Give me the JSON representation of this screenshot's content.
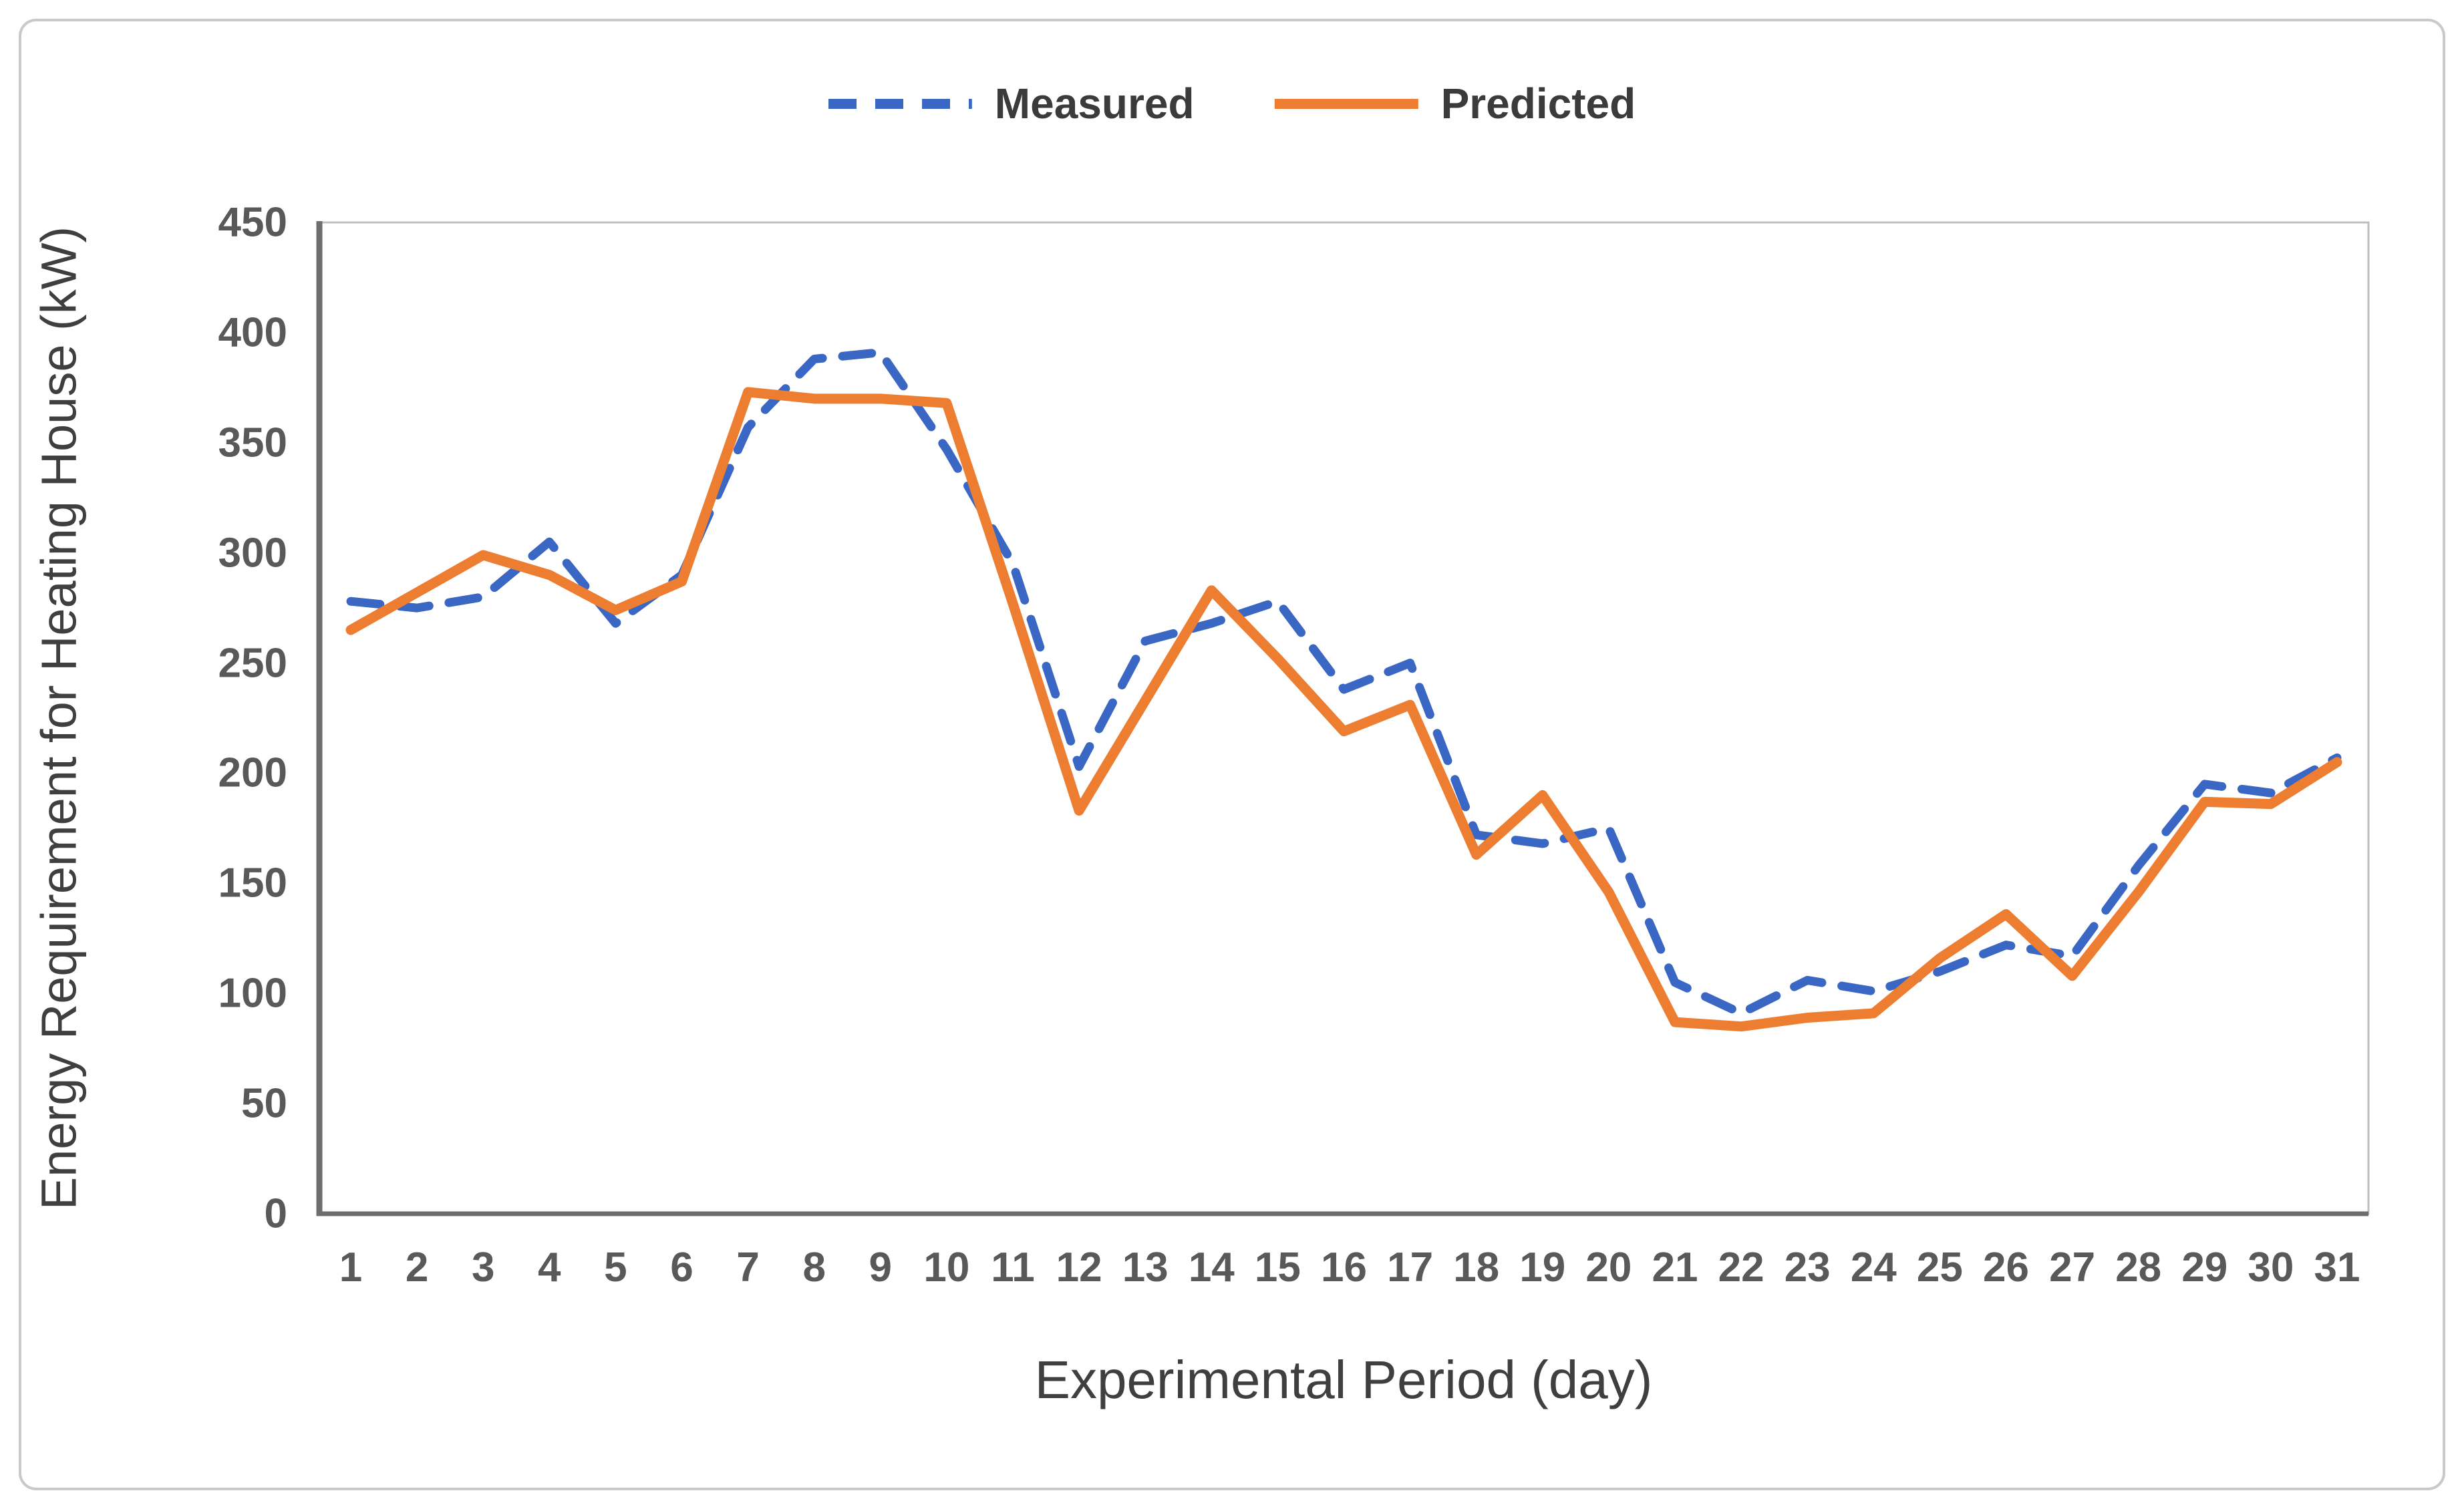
{
  "legend": {
    "items": [
      {
        "label": "Measured",
        "color": "#3a66c4",
        "style": "dashed"
      },
      {
        "label": "Predicted",
        "color": "#ed7d31",
        "style": "solid"
      }
    ]
  },
  "axes": {
    "x_title": "Experimental Period (day)",
    "y_title": "Energy Requirement for Heating House (kW)"
  },
  "colors": {
    "measured": "#3a66c4",
    "predicted": "#ed7d31",
    "axis_line": "#6e6e6e",
    "plot_border": "#bfbfbf",
    "tick_text": "#595959"
  },
  "chart_data": {
    "type": "line",
    "title": "",
    "xlabel": "Experimental Period (day)",
    "ylabel": "Energy Requirement for Heating House (kW)",
    "x": [
      1,
      2,
      3,
      4,
      5,
      6,
      7,
      8,
      9,
      10,
      11,
      12,
      13,
      14,
      15,
      16,
      17,
      18,
      19,
      20,
      21,
      22,
      23,
      24,
      25,
      26,
      27,
      28,
      29,
      30,
      31
    ],
    "xlim": [
      1,
      31
    ],
    "ylim": [
      0,
      450
    ],
    "yticks": [
      0,
      50,
      100,
      150,
      200,
      250,
      300,
      350,
      400,
      450
    ],
    "grid": false,
    "legend_position": "top",
    "series": [
      {
        "name": "Measured",
        "color": "#3a66c4",
        "dash": true,
        "values": [
          278,
          275,
          280,
          305,
          268,
          290,
          357,
          388,
          391,
          347,
          295,
          203,
          260,
          268,
          278,
          238,
          250,
          172,
          168,
          175,
          105,
          91,
          106,
          101,
          110,
          122,
          117,
          158,
          195,
          191,
          207
        ]
      },
      {
        "name": "Predicted",
        "color": "#ed7d31",
        "dash": false,
        "values": [
          265,
          282,
          299,
          290,
          274,
          287,
          373,
          370,
          370,
          368,
          277,
          183,
          233,
          283,
          252,
          219,
          231,
          163,
          190,
          146,
          87,
          85,
          89,
          91,
          116,
          136,
          108,
          146,
          187,
          186,
          205
        ]
      }
    ]
  }
}
